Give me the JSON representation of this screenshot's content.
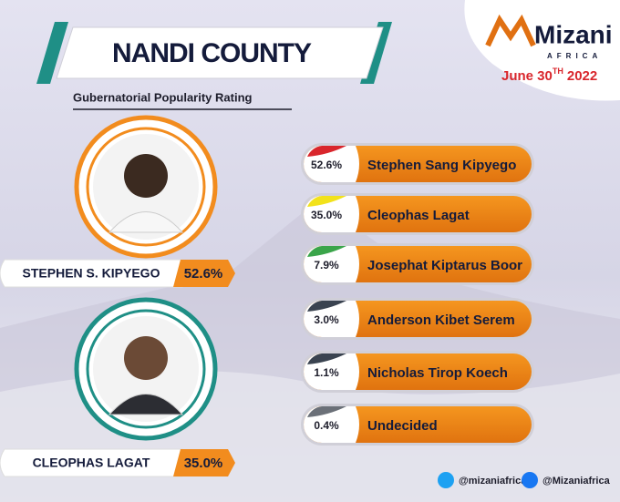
{
  "header": {
    "title": "NANDI COUNTY",
    "subtitle": "Gubernatorial Popularity Rating"
  },
  "brand": {
    "name": "Mizani",
    "tagline": "AFRICA",
    "date": "June 30",
    "date_suffix": "TH",
    "year": "2022"
  },
  "featured": [
    {
      "name": "STEPHEN S. KIPYEGO",
      "rating": "52.6%",
      "ring": "#f28c1e"
    },
    {
      "name": "CLEOPHAS LAGAT",
      "rating": "35.0%",
      "ring": "#1f8f86"
    }
  ],
  "candidates": [
    {
      "rating": "52.6%",
      "name": "Stephen Sang Kipyego",
      "accent": "#d9262c"
    },
    {
      "rating": "35.0%",
      "name": "Cleophas Lagat",
      "accent": "#f2e21b"
    },
    {
      "rating": "7.9%",
      "name": "Josephat Kiptarus Boor",
      "accent": "#3aa54a"
    },
    {
      "rating": "3.0%",
      "name": "Anderson Kibet Serem",
      "accent": "#3a4350"
    },
    {
      "rating": "1.1%",
      "name": "Nicholas Tirop Koech",
      "accent": "#3a4350"
    },
    {
      "rating": "0.4%",
      "name": "Undecided",
      "accent": "#6b7078"
    }
  ],
  "footer": {
    "twitter": "@mizaniafrica",
    "facebook": "@Mizaniafrica"
  }
}
